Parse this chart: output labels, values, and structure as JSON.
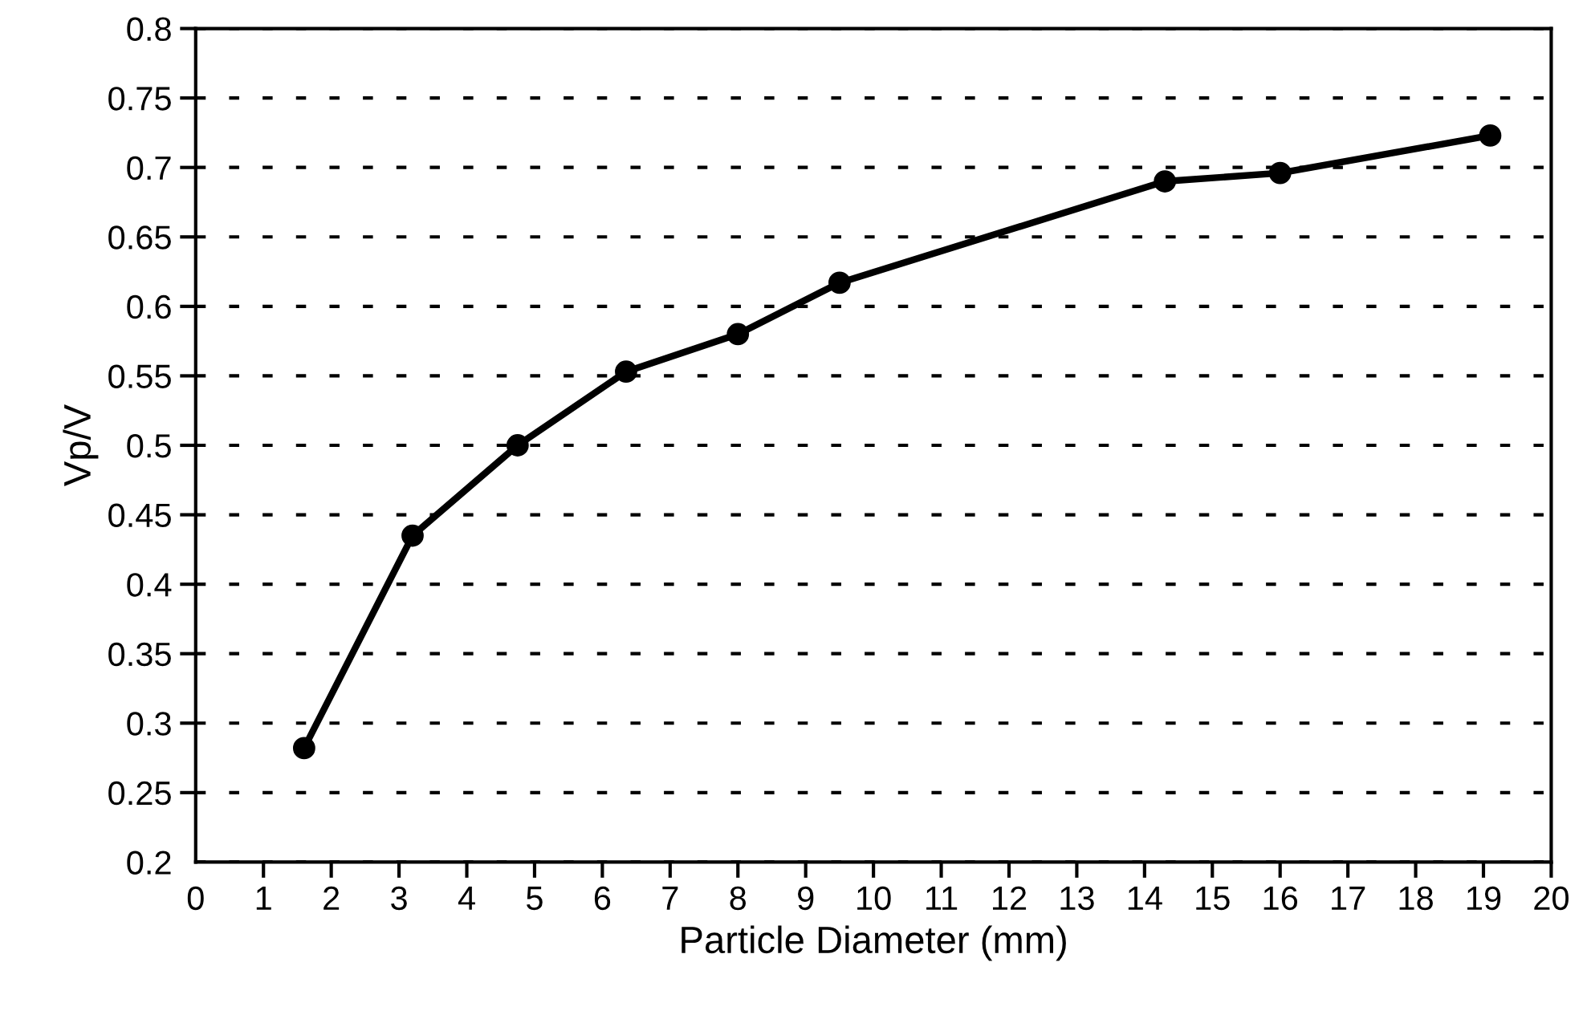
{
  "chart_data": {
    "type": "line",
    "xlabel": "Particle Diameter (mm)",
    "ylabel": "Vp/V",
    "series": [
      {
        "color": "#000000",
        "x": [
          1.6,
          3.2,
          4.75,
          6.35,
          8,
          9.5,
          14.3,
          16,
          19.1
        ],
        "values": [
          0.282,
          0.435,
          0.5,
          0.553,
          0.58,
          0.617,
          0.69,
          0.696,
          0.723
        ]
      }
    ],
    "xlim": [
      0,
      20
    ],
    "xticks": [
      0,
      1,
      2,
      3,
      4,
      5,
      6,
      7,
      8,
      9,
      10,
      11,
      12,
      13,
      14,
      15,
      16,
      17,
      18,
      19,
      20
    ],
    "ylim": [
      0.2,
      0.8
    ],
    "yticks": [
      0.2,
      0.25,
      0.3,
      0.35,
      0.4,
      0.45,
      0.5,
      0.55,
      0.6,
      0.65,
      0.7,
      0.75,
      0.8
    ],
    "grid": "y",
    "marker": "circle",
    "line_style": "solid"
  }
}
